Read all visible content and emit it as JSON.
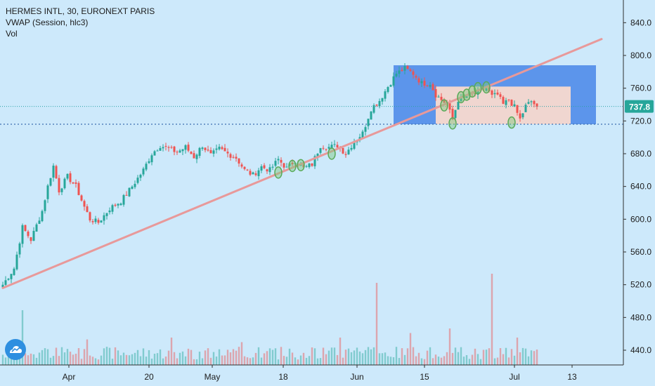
{
  "header": {
    "symbol_line": "HERMES INTL, 30, EURONEXT PARIS",
    "vwap_line": "VWAP (Session, hlc3)",
    "vol_line": "Vol"
  },
  "price_label": "737.8",
  "colors": {
    "background": "#cde9fb",
    "up_candle": "#26a69a",
    "down_candle": "#ef5350",
    "trendline": "#e8999a",
    "blue_box": "#5c95eb",
    "pink_box": "#f0d6d0",
    "marker": "#79c879",
    "price_line": "#2aa2a8",
    "price_tag": "#26a69a",
    "volume_up": "#26a69a",
    "volume_down": "#ef5350"
  },
  "chart_data": {
    "type": "candlestick",
    "title": "HERMES INTL, 30, EURONEXT PARIS",
    "indicators": [
      "VWAP (Session, hlc3)",
      "Vol"
    ],
    "x_ticks": [
      "Apr",
      "20",
      "May",
      "18",
      "Jun",
      "15",
      "Jul",
      "13"
    ],
    "y_ticks": [
      "840.0",
      "800.0",
      "760.0",
      "720.0",
      "680.0",
      "640.0",
      "600.0",
      "560.0",
      "520.0",
      "480.0",
      "440.0"
    ],
    "y_range": [
      425,
      865
    ],
    "last_price": 737.8,
    "horizontal_level": 716,
    "price_path": [
      {
        "i": 0,
        "p": 520
      },
      {
        "i": 4,
        "p": 540
      },
      {
        "i": 7,
        "p": 590
      },
      {
        "i": 10,
        "p": 575
      },
      {
        "i": 14,
        "p": 610
      },
      {
        "i": 16,
        "p": 640
      },
      {
        "i": 18,
        "p": 665
      },
      {
        "i": 20,
        "p": 635
      },
      {
        "i": 23,
        "p": 652
      },
      {
        "i": 26,
        "p": 640
      },
      {
        "i": 29,
        "p": 615
      },
      {
        "i": 31,
        "p": 600
      },
      {
        "i": 34,
        "p": 596
      },
      {
        "i": 38,
        "p": 613
      },
      {
        "i": 42,
        "p": 622
      },
      {
        "i": 46,
        "p": 640
      },
      {
        "i": 50,
        "p": 660
      },
      {
        "i": 53,
        "p": 680
      },
      {
        "i": 56,
        "p": 690
      },
      {
        "i": 59,
        "p": 686
      },
      {
        "i": 62,
        "p": 682
      },
      {
        "i": 65,
        "p": 688
      },
      {
        "i": 68,
        "p": 676
      },
      {
        "i": 71,
        "p": 690
      },
      {
        "i": 74,
        "p": 678
      },
      {
        "i": 77,
        "p": 686
      },
      {
        "i": 80,
        "p": 680
      },
      {
        "i": 83,
        "p": 675
      },
      {
        "i": 86,
        "p": 660
      },
      {
        "i": 89,
        "p": 654
      },
      {
        "i": 92,
        "p": 664
      },
      {
        "i": 95,
        "p": 660
      },
      {
        "i": 98,
        "p": 673
      },
      {
        "i": 101,
        "p": 662
      },
      {
        "i": 104,
        "p": 672
      },
      {
        "i": 107,
        "p": 662
      },
      {
        "i": 110,
        "p": 667
      },
      {
        "i": 113,
        "p": 690
      },
      {
        "i": 116,
        "p": 688
      },
      {
        "i": 119,
        "p": 690
      },
      {
        "i": 122,
        "p": 680
      },
      {
        "i": 125,
        "p": 695
      },
      {
        "i": 128,
        "p": 705
      },
      {
        "i": 131,
        "p": 735
      },
      {
        "i": 134,
        "p": 745
      },
      {
        "i": 137,
        "p": 762
      },
      {
        "i": 140,
        "p": 778
      },
      {
        "i": 143,
        "p": 784
      },
      {
        "i": 146,
        "p": 778
      },
      {
        "i": 149,
        "p": 766
      },
      {
        "i": 152,
        "p": 766
      },
      {
        "i": 154,
        "p": 752
      },
      {
        "i": 156,
        "p": 746
      },
      {
        "i": 158,
        "p": 740
      },
      {
        "i": 160,
        "p": 722
      },
      {
        "i": 162,
        "p": 746
      },
      {
        "i": 164,
        "p": 748
      },
      {
        "i": 166,
        "p": 752
      },
      {
        "i": 168,
        "p": 753
      },
      {
        "i": 170,
        "p": 757
      },
      {
        "i": 172,
        "p": 760
      },
      {
        "i": 174,
        "p": 750
      },
      {
        "i": 176,
        "p": 752
      },
      {
        "i": 178,
        "p": 740
      },
      {
        "i": 180,
        "p": 746
      },
      {
        "i": 182,
        "p": 737
      },
      {
        "i": 184,
        "p": 722
      },
      {
        "i": 186,
        "p": 738
      },
      {
        "i": 188,
        "p": 744
      },
      {
        "i": 190,
        "p": 737.8
      }
    ],
    "volume_spikes": [
      {
        "i": 7,
        "v": 0.6
      },
      {
        "i": 30,
        "v": 0.28
      },
      {
        "i": 60,
        "v": 0.3
      },
      {
        "i": 85,
        "v": 0.25
      },
      {
        "i": 120,
        "v": 0.3
      },
      {
        "i": 133,
        "v": 0.9
      },
      {
        "i": 145,
        "v": 0.35
      },
      {
        "i": 159,
        "v": 0.4
      },
      {
        "i": 174,
        "v": 1.0
      },
      {
        "i": 183,
        "v": 0.3
      }
    ],
    "annotations": {
      "trendline": {
        "from": {
          "i": 0,
          "p": 516
        },
        "to": {
          "i": 213,
          "p": 820
        }
      },
      "blue_box": {
        "i0": 139,
        "i1": 211,
        "p0": 716,
        "p1": 788
      },
      "pink_box": {
        "i0": 154,
        "i1": 202,
        "p0": 716,
        "p1": 762
      },
      "markers": [
        {
          "i": 98,
          "p": 657
        },
        {
          "i": 103,
          "p": 665
        },
        {
          "i": 106,
          "p": 666
        },
        {
          "i": 117,
          "p": 680
        },
        {
          "i": 157,
          "p": 739
        },
        {
          "i": 160,
          "p": 717
        },
        {
          "i": 163,
          "p": 749
        },
        {
          "i": 165,
          "p": 752
        },
        {
          "i": 167,
          "p": 756
        },
        {
          "i": 169,
          "p": 760
        },
        {
          "i": 172,
          "p": 761
        },
        {
          "i": 181,
          "p": 718
        }
      ]
    }
  }
}
